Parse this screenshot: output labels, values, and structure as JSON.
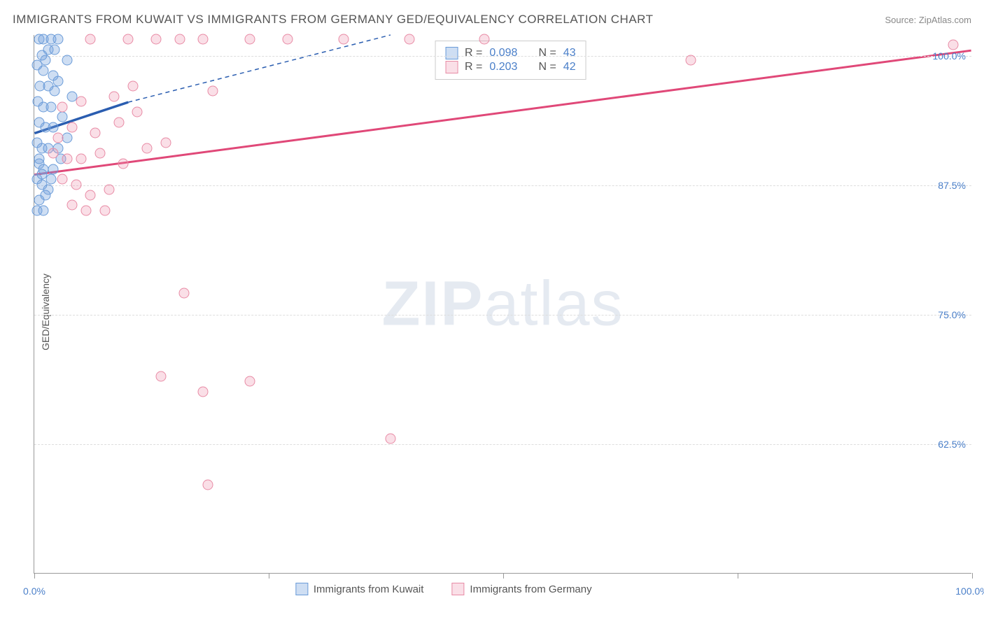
{
  "title": "IMMIGRANTS FROM KUWAIT VS IMMIGRANTS FROM GERMANY GED/EQUIVALENCY CORRELATION CHART",
  "source": "Source: ZipAtlas.com",
  "ylabel": "GED/Equivalency",
  "watermark_bold": "ZIP",
  "watermark_rest": "atlas",
  "chart": {
    "type": "scatter",
    "xlim": [
      0,
      100
    ],
    "ylim": [
      50,
      102
    ],
    "x_ticks": [
      0,
      25,
      50,
      75,
      100
    ],
    "x_tick_labels": {
      "0": "0.0%",
      "100": "100.0%"
    },
    "y_gridlines": [
      62.5,
      75,
      87.5,
      100
    ],
    "y_tick_labels": [
      "62.5%",
      "75.0%",
      "87.5%",
      "100.0%"
    ],
    "grid_color": "#dddddd",
    "axis_color": "#999999",
    "background_color": "#ffffff"
  },
  "series": [
    {
      "name": "Immigrants from Kuwait",
      "fill": "rgba(115,160,220,0.35)",
      "stroke": "#6a9bd8",
      "line_color": "#2a5db0",
      "R": "0.098",
      "N": "43",
      "regression": {
        "x1": 0,
        "y1": 92.5,
        "x2": 10,
        "y2": 95.5,
        "dash_x2": 38,
        "dash_y2": 102
      },
      "points": [
        [
          0.5,
          101.5
        ],
        [
          1.0,
          101.5
        ],
        [
          1.8,
          101.5
        ],
        [
          2.5,
          101.5
        ],
        [
          0.3,
          99.0
        ],
        [
          1.2,
          99.5
        ],
        [
          2.0,
          98.0
        ],
        [
          3.5,
          99.5
        ],
        [
          0.6,
          97.0
        ],
        [
          1.5,
          97.0
        ],
        [
          2.2,
          96.5
        ],
        [
          0.4,
          95.5
        ],
        [
          1.0,
          95.0
        ],
        [
          1.8,
          95.0
        ],
        [
          4.0,
          96.0
        ],
        [
          0.5,
          93.5
        ],
        [
          1.2,
          93.0
        ],
        [
          2.0,
          93.0
        ],
        [
          0.3,
          91.5
        ],
        [
          0.8,
          91.0
        ],
        [
          1.5,
          91.0
        ],
        [
          2.5,
          91.0
        ],
        [
          0.5,
          89.5
        ],
        [
          1.0,
          89.0
        ],
        [
          2.0,
          89.0
        ],
        [
          0.3,
          88.0
        ],
        [
          0.8,
          87.5
        ],
        [
          1.5,
          87.0
        ],
        [
          0.5,
          86.0
        ],
        [
          0.3,
          85.0
        ],
        [
          1.0,
          85.0
        ],
        [
          3.0,
          94.0
        ],
        [
          3.5,
          92.0
        ],
        [
          2.8,
          90.0
        ],
        [
          1.5,
          100.5
        ],
        [
          0.8,
          100.0
        ],
        [
          2.2,
          100.5
        ],
        [
          1.0,
          98.5
        ],
        [
          0.5,
          90.0
        ],
        [
          0.8,
          88.5
        ],
        [
          1.2,
          86.5
        ],
        [
          1.8,
          88.0
        ],
        [
          2.5,
          97.5
        ]
      ]
    },
    {
      "name": "Immigrants from Germany",
      "fill": "rgba(240,150,175,0.30)",
      "stroke": "#e88ba5",
      "line_color": "#e04878",
      "R": "0.203",
      "N": "42",
      "regression": {
        "x1": 0,
        "y1": 88.5,
        "x2": 100,
        "y2": 100.5
      },
      "points": [
        [
          2.0,
          90.5
        ],
        [
          3.5,
          90.0
        ],
        [
          5.0,
          90.0
        ],
        [
          7.0,
          90.5
        ],
        [
          3.0,
          88.0
        ],
        [
          4.5,
          87.5
        ],
        [
          6.0,
          86.5
        ],
        [
          8.0,
          87.0
        ],
        [
          4.0,
          85.5
        ],
        [
          5.5,
          85.0
        ],
        [
          7.5,
          85.0
        ],
        [
          2.5,
          92.0
        ],
        [
          4.0,
          93.0
        ],
        [
          6.5,
          92.5
        ],
        [
          9.0,
          93.5
        ],
        [
          11.0,
          94.5
        ],
        [
          8.5,
          96.0
        ],
        [
          10.5,
          97.0
        ],
        [
          6.0,
          101.5
        ],
        [
          10.0,
          101.5
        ],
        [
          13.0,
          101.5
        ],
        [
          15.5,
          101.5
        ],
        [
          18.0,
          101.5
        ],
        [
          23.0,
          101.5
        ],
        [
          27.0,
          101.5
        ],
        [
          33.0,
          101.5
        ],
        [
          40.0,
          101.5
        ],
        [
          48.0,
          101.5
        ],
        [
          19.0,
          96.5
        ],
        [
          12.0,
          91.0
        ],
        [
          70.0,
          99.5
        ],
        [
          98.0,
          101.0
        ],
        [
          16.0,
          77.0
        ],
        [
          13.5,
          69.0
        ],
        [
          18.0,
          67.5
        ],
        [
          23.0,
          68.5
        ],
        [
          38.0,
          63.0
        ],
        [
          18.5,
          58.5
        ],
        [
          14.0,
          91.5
        ],
        [
          5.0,
          95.5
        ],
        [
          3.0,
          95.0
        ],
        [
          9.5,
          89.5
        ]
      ]
    }
  ],
  "legend_labels": {
    "R": "R =",
    "N": "N ="
  },
  "bottom_legend": [
    "Immigrants from Kuwait",
    "Immigrants from Germany"
  ]
}
